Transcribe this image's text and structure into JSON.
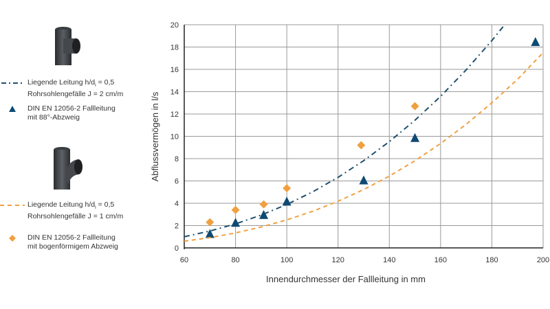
{
  "legend": {
    "items": [
      {
        "line1": "Liegende Leitung h/d",
        "sub": "i",
        "line1b": " = 0,5",
        "line2": "Rohrsohlengefälle J = 2 cm/m",
        "symbol": "dash-dot-line",
        "color": "#1d4f6e"
      },
      {
        "line1": "DIN EN 12056-2 Fallleitung",
        "line2": "mit 88°-Abzweig",
        "symbol": "triangle",
        "color": "#0e4a73"
      },
      {
        "line1": "Liegende Leitung h/d",
        "sub": "i",
        "line1b": " = 0,5",
        "line2": "Rohrsohlengefälle J = 1 cm/m",
        "symbol": "dashed-line",
        "color": "#f0a040"
      },
      {
        "line1": "DIN EN 12056-2 Fallleitung",
        "line2": "mit bogenförmigem Abzweig",
        "symbol": "diamond",
        "color": "#f0a040"
      }
    ],
    "images": [
      "pipe-tee-88-icon",
      "pipe-tee-curved-icon"
    ]
  },
  "chart_data": {
    "type": "scatter",
    "xlabel": "Innendurchmesser der Fallleitung in mm",
    "ylabel": "Abflussvermögen in l/s",
    "xlim": [
      60,
      200
    ],
    "ylim": [
      0,
      20
    ],
    "xticks": [
      60,
      80,
      100,
      120,
      140,
      160,
      180,
      200
    ],
    "yticks": [
      0,
      2,
      4,
      6,
      8,
      10,
      12,
      14,
      16,
      18,
      20
    ],
    "grid": true,
    "legend_position": "left",
    "series": [
      {
        "kind": "line",
        "style": "dash-dot",
        "color": "#1d4f6e",
        "x": [
          60,
          70,
          80,
          90,
          100,
          110,
          120,
          130,
          140,
          150,
          160,
          170,
          180,
          185
        ],
        "y": [
          1.0,
          1.51,
          2.15,
          2.94,
          3.89,
          5.01,
          6.32,
          7.82,
          9.52,
          11.44,
          13.58,
          15.96,
          18.58,
          20.0
        ]
      },
      {
        "kind": "points",
        "marker": "triangle",
        "color": "#0e4a73",
        "x": [
          70,
          80,
          91,
          100,
          130,
          150,
          197
        ],
        "y": [
          1.2,
          2.2,
          2.9,
          4.1,
          6.0,
          9.8,
          18.4
        ]
      },
      {
        "kind": "line",
        "style": "dashed",
        "color": "#f0a040",
        "x": [
          60,
          70,
          80,
          90,
          100,
          110,
          120,
          130,
          140,
          150,
          160,
          170,
          180,
          190,
          200
        ],
        "y": [
          0.6,
          0.92,
          1.34,
          1.87,
          2.51,
          3.27,
          4.18,
          5.23,
          6.43,
          7.81,
          9.35,
          11.08,
          13.0,
          15.1,
          17.5
        ]
      },
      {
        "kind": "points",
        "marker": "diamond",
        "color": "#f0a040",
        "x": [
          70,
          80,
          91,
          100,
          129,
          150
        ],
        "y": [
          2.3,
          3.4,
          3.9,
          5.35,
          9.2,
          12.7
        ]
      }
    ]
  }
}
